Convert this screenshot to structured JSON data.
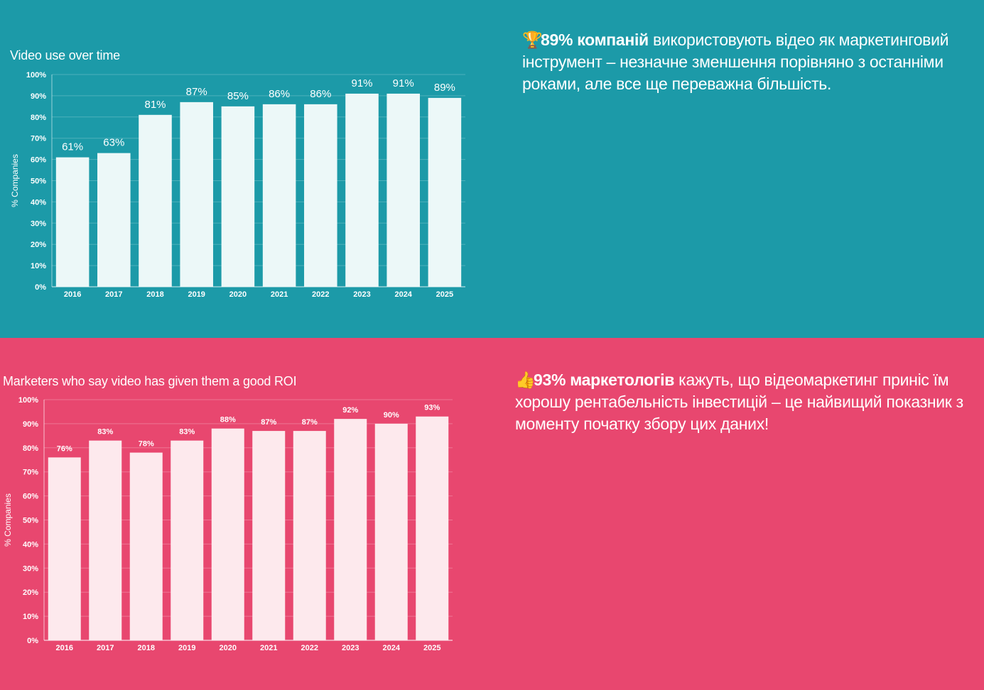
{
  "chart_data": [
    {
      "type": "bar",
      "title": "Video use over time",
      "xlabel": "",
      "ylabel": "% Companies",
      "categories": [
        "2016",
        "2017",
        "2018",
        "2019",
        "2020",
        "2021",
        "2022",
        "2023",
        "2024",
        "2025"
      ],
      "values": [
        61,
        63,
        81,
        87,
        85,
        86,
        86,
        91,
        91,
        89
      ],
      "value_labels": [
        "61%",
        "63%",
        "81%",
        "87%",
        "85%",
        "86%",
        "86%",
        "91%",
        "91%",
        "89%"
      ],
      "ylim": [
        0,
        100
      ],
      "yticks": [
        "0%",
        "10%",
        "20%",
        "30%",
        "40%",
        "50%",
        "60%",
        "70%",
        "80%",
        "90%",
        "100%"
      ],
      "grid": true,
      "bar_color": "#ecf8f8"
    },
    {
      "type": "bar",
      "title": "Marketers who say video has given them a good ROI",
      "xlabel": "",
      "ylabel": "% Companies",
      "categories": [
        "2016",
        "2017",
        "2018",
        "2019",
        "2020",
        "2021",
        "2022",
        "2023",
        "2024",
        "2025"
      ],
      "values": [
        76,
        83,
        78,
        83,
        88,
        87,
        87,
        92,
        90,
        93
      ],
      "value_labels": [
        "76%",
        "83%",
        "78%",
        "83%",
        "88%",
        "87%",
        "87%",
        "92%",
        "90%",
        "93%"
      ],
      "ylim": [
        0,
        100
      ],
      "yticks": [
        "0%",
        "10%",
        "20%",
        "30%",
        "40%",
        "50%",
        "60%",
        "70%",
        "80%",
        "90%",
        "100%"
      ],
      "grid": true,
      "bar_color": "#fde9ed"
    }
  ],
  "blurb1": {
    "icon": "🏆",
    "bold": "89% компаній",
    "text": " використовують відео як маркетинговий інструмент – незначне зменшення порівняно з останніми роками, але все ще переважна більшість."
  },
  "blurb2": {
    "icon": "👍",
    "bold": "93% маркетологів",
    "text": " кажуть, що відеомаркетинг приніс їм хорошу рентабельність інвестицій – це найвищий показник з моменту початку збору цих даних!"
  },
  "colors": {
    "teal": "#1c9aa8",
    "pink": "#e8476f"
  }
}
